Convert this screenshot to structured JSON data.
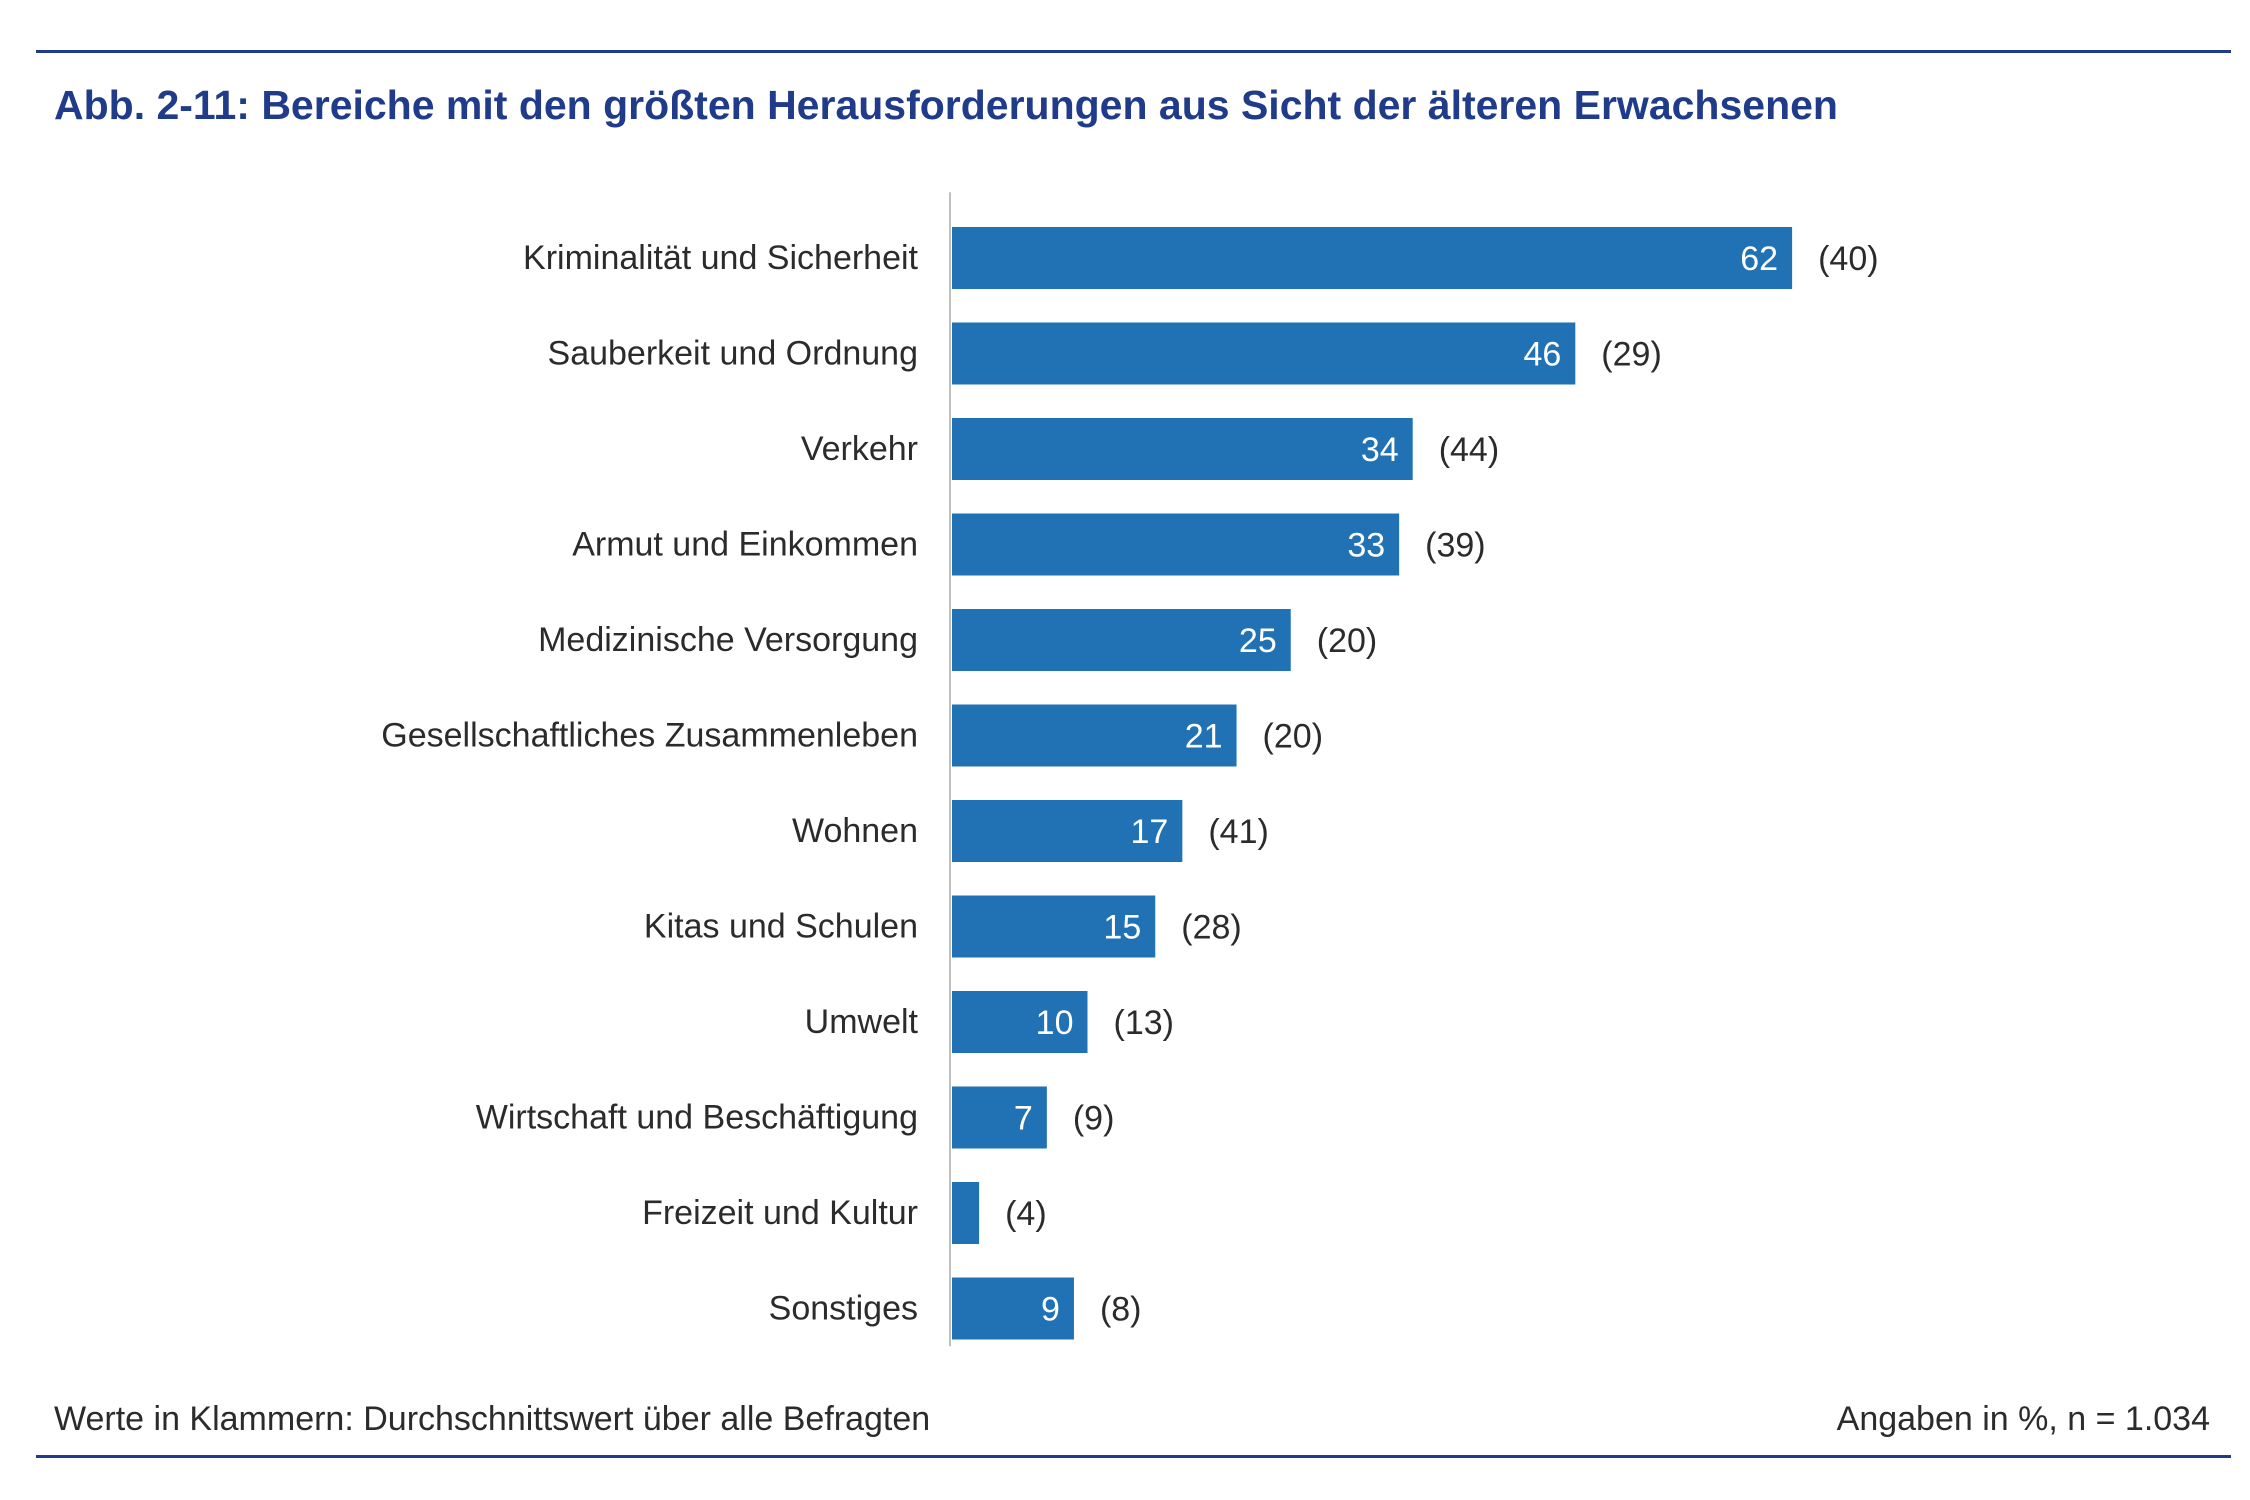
{
  "title": "Abb. 2-11: Bereiche mit den größten Herausforderungen aus Sicht der älteren Erwachsenen",
  "footnote": "Werte in Klammern: Durchschnittswert über alle Befragten",
  "unit_note": "Angaben in %, n = 1.034",
  "colors": {
    "bar": "#2171b5",
    "title": "#1f3b8a",
    "rule": "#1f3b8a",
    "axis": "#bfbfbf"
  },
  "chart_data": {
    "type": "bar",
    "orientation": "horizontal",
    "title": "Abb. 2-11: Bereiche mit den größten Herausforderungen aus Sicht der älteren Erwachsenen",
    "xlim": [
      0,
      100
    ],
    "grid": false,
    "categories": [
      "Kriminalität und Sicherheit",
      "Sauberkeit und Ordnung",
      "Verkehr",
      "Armut und Einkommen",
      "Medizinische Versorgung",
      "Gesellschaftliches Zusammenleben",
      "Wohnen",
      "Kitas und Schulen",
      "Umwelt",
      "Wirtschaft und Beschäftigung",
      "Freizeit und Kultur",
      "Sonstiges"
    ],
    "values": [
      62,
      46,
      34,
      33,
      25,
      21,
      17,
      15,
      10,
      7,
      2,
      9
    ],
    "value_labels": [
      "62",
      "46",
      "34",
      "33",
      "25",
      "21",
      "17",
      "15",
      "10",
      "7",
      "",
      "9"
    ],
    "average_labels": [
      "(40)",
      "(29)",
      "(44)",
      "(39)",
      "(20)",
      "(20)",
      "(41)",
      "(28)",
      "(13)",
      "(9)",
      "(4)",
      "(8)"
    ]
  }
}
